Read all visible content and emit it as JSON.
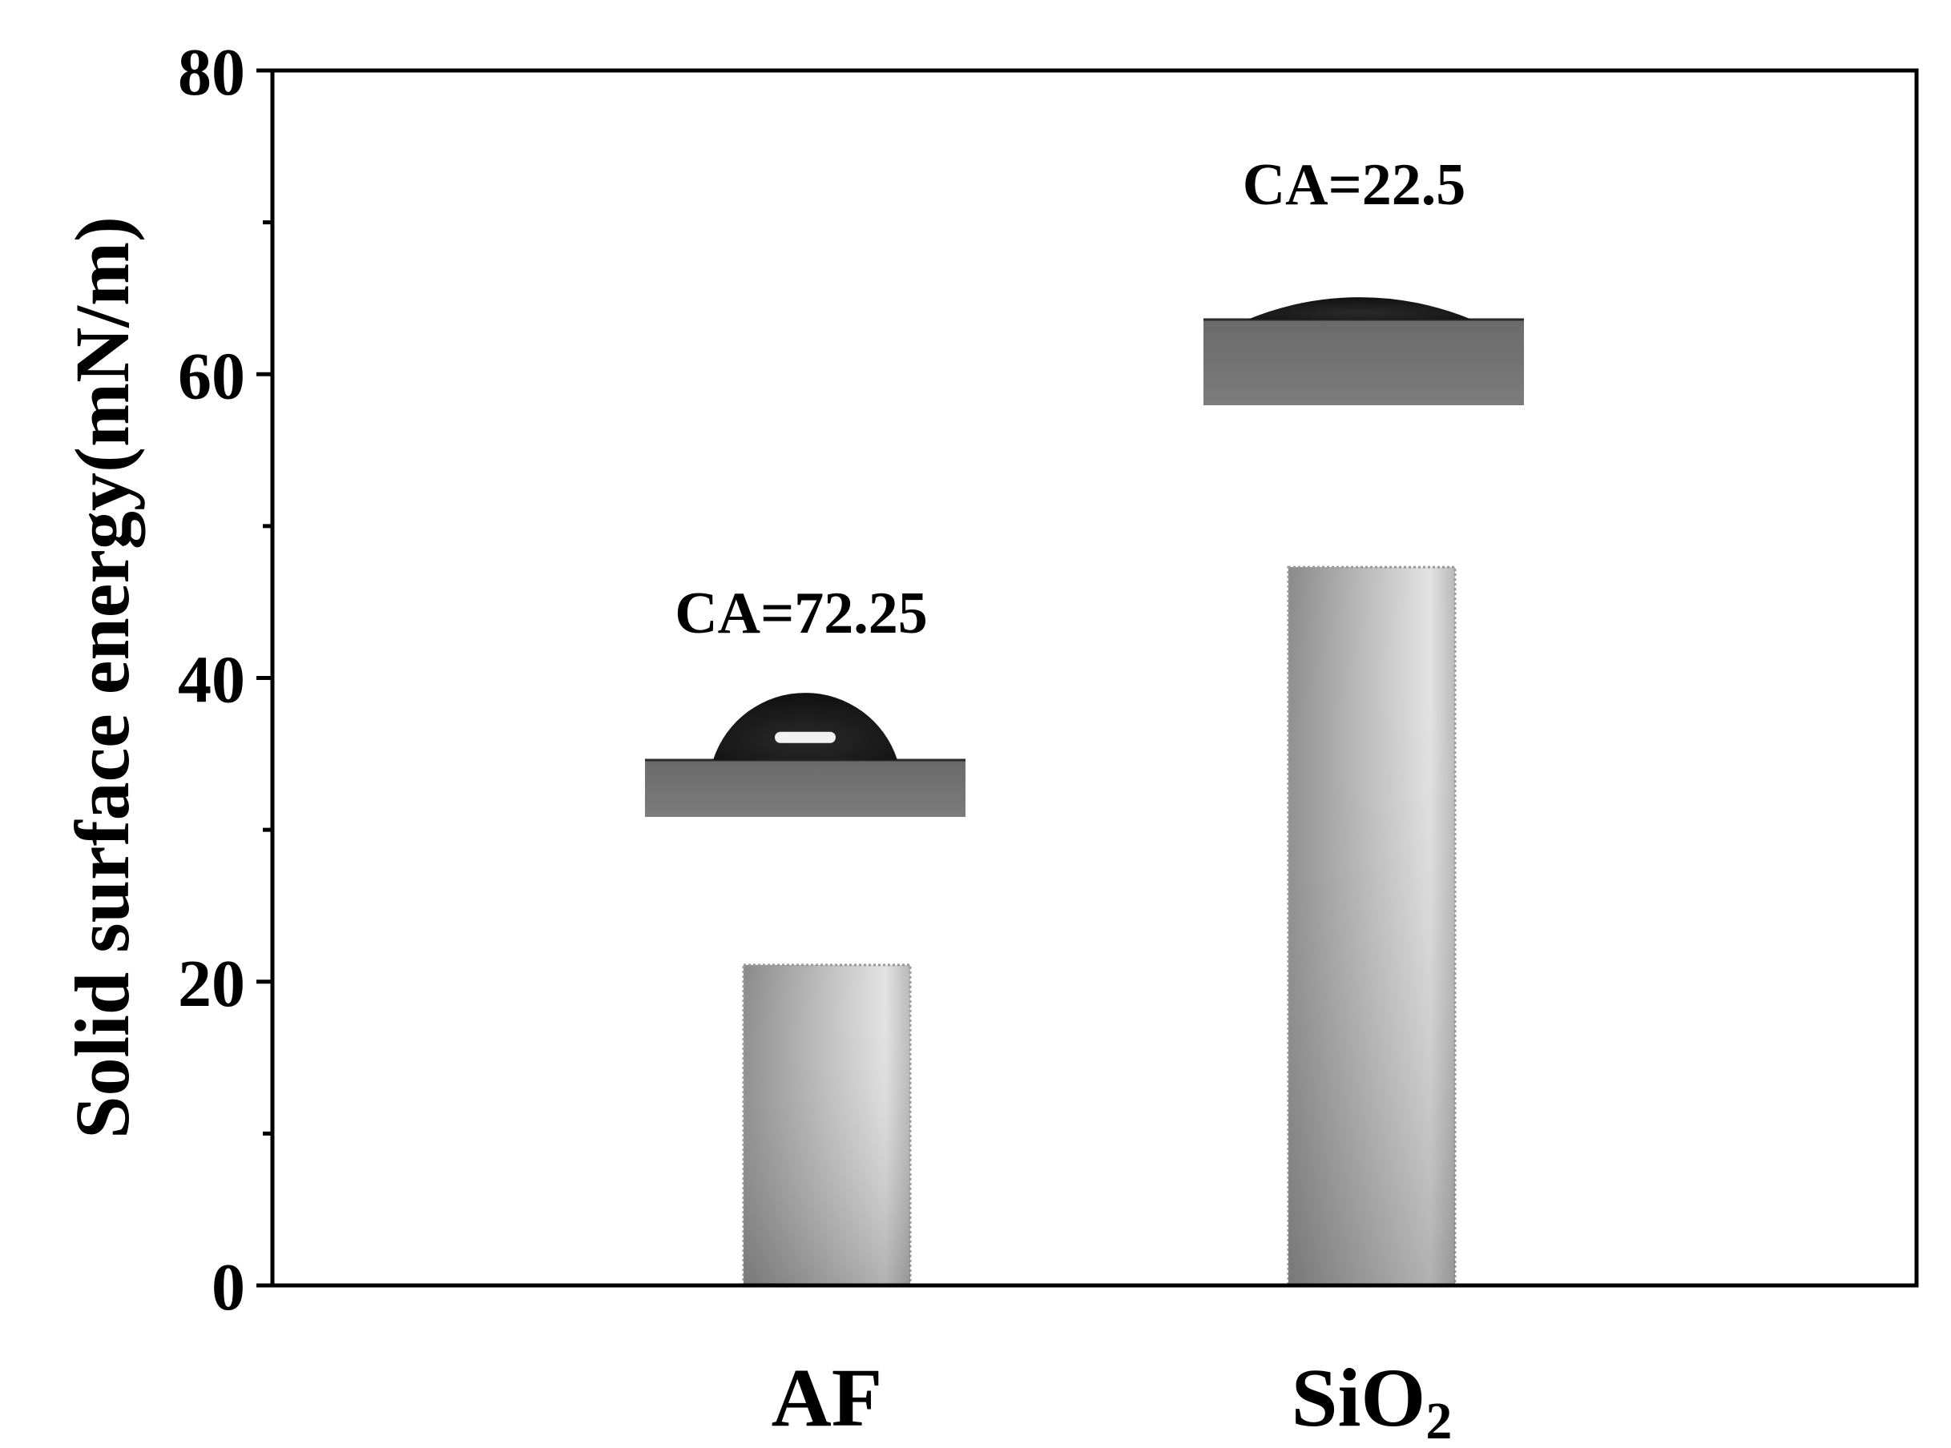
{
  "chart_data": {
    "type": "bar",
    "categories": [
      "AF",
      "SiO2"
    ],
    "category_display": [
      {
        "main": "AF",
        "sub": ""
      },
      {
        "main": "SiO",
        "sub": "2"
      }
    ],
    "values": [
      21.1,
      47.3
    ],
    "ylabel": "Solid surface energy(mN/m)",
    "xlabel": "",
    "title": "",
    "ylim": [
      0,
      80
    ],
    "yticks_major": [
      0,
      20,
      40,
      60,
      80
    ],
    "yticks_minor": [
      10,
      30,
      50,
      70
    ],
    "grid": false,
    "annotations": [
      {
        "text": "CA=72.25",
        "category": "AF"
      },
      {
        "text": "CA=22.5",
        "category": "SiO2"
      }
    ],
    "droplet_photos": [
      {
        "category": "AF",
        "contact_angle_deg": 72.25
      },
      {
        "category": "SiO2",
        "contact_angle_deg": 22.5
      }
    ],
    "colors": {
      "bar_dark": "#7a7a7a",
      "bar_light": "#dcdcdc",
      "axis": "#000000"
    }
  }
}
